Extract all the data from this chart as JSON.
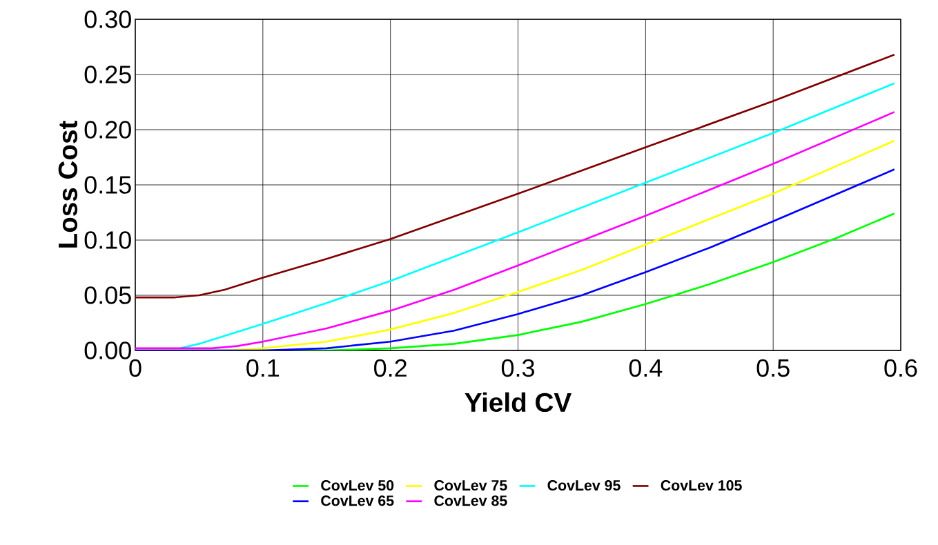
{
  "chart_data": {
    "type": "line",
    "xlabel": "Yield CV",
    "ylabel": "Loss Cost",
    "xlim": [
      0,
      0.6
    ],
    "xticks": [
      0,
      0.1,
      0.2,
      0.3,
      0.4,
      0.5,
      0.6
    ],
    "ylim": [
      0,
      0.3
    ],
    "yticks": [
      {
        "value": 0,
        "label": "0.00"
      },
      {
        "value": 0.05,
        "label": "0.05"
      },
      {
        "value": 0.1,
        "label": "0.10"
      },
      {
        "value": 0.15,
        "label": "0.15"
      },
      {
        "value": 0.2,
        "label": "0.20"
      },
      {
        "value": 0.25,
        "label": "0.25"
      },
      {
        "value": 0.3,
        "label": "0.30"
      }
    ],
    "grid": true,
    "legend": "bottom",
    "marker": "none",
    "line_style": "solid",
    "series": [
      {
        "name": "CovLev 50",
        "color": "#00ff00",
        "x": [
          0,
          0.1,
          0.15,
          0.2,
          0.25,
          0.3,
          0.35,
          0.4,
          0.45,
          0.5,
          0.55,
          0.595
        ],
        "values": [
          0,
          0,
          0,
          0.002,
          0.006,
          0.014,
          0.026,
          0.042,
          0.06,
          0.08,
          0.102,
          0.124
        ]
      },
      {
        "name": "CovLev 75",
        "color": "#ffff00",
        "x": [
          0,
          0.07,
          0.1,
          0.15,
          0.2,
          0.25,
          0.3,
          0.35,
          0.4,
          0.5,
          0.595
        ],
        "values": [
          0,
          0,
          0.002,
          0.008,
          0.019,
          0.034,
          0.053,
          0.073,
          0.096,
          0.142,
          0.19
        ]
      },
      {
        "name": "CovLev 95",
        "color": "#00ffff",
        "x": [
          0.035,
          0.05,
          0.1,
          0.15,
          0.2,
          0.3,
          0.4,
          0.5,
          0.595
        ],
        "values": [
          0.002,
          0.006,
          0.024,
          0.043,
          0.063,
          0.107,
          0.152,
          0.197,
          0.242
        ]
      },
      {
        "name": "CovLev 105",
        "color": "#800000",
        "x": [
          0,
          0.03,
          0.05,
          0.07,
          0.1,
          0.15,
          0.2,
          0.3,
          0.4,
          0.5,
          0.595
        ],
        "values": [
          0.048,
          0.048,
          0.05,
          0.055,
          0.066,
          0.083,
          0.101,
          0.142,
          0.184,
          0.226,
          0.268
        ]
      },
      {
        "name": "CovLev 65",
        "color": "#0000ff",
        "x": [
          0,
          0.1,
          0.15,
          0.2,
          0.25,
          0.3,
          0.35,
          0.4,
          0.45,
          0.5,
          0.595
        ],
        "values": [
          0,
          0,
          0.002,
          0.008,
          0.018,
          0.033,
          0.05,
          0.071,
          0.093,
          0.117,
          0.164
        ]
      },
      {
        "name": "CovLev 85",
        "color": "#ff00ff",
        "x": [
          0,
          0.06,
          0.08,
          0.1,
          0.15,
          0.2,
          0.25,
          0.3,
          0.4,
          0.5,
          0.595
        ],
        "values": [
          0.002,
          0.002,
          0.004,
          0.008,
          0.02,
          0.036,
          0.055,
          0.077,
          0.122,
          0.169,
          0.216
        ]
      }
    ]
  }
}
